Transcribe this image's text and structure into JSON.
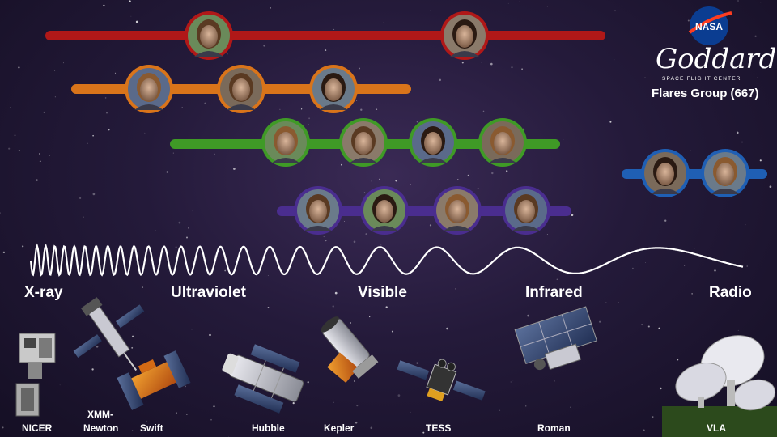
{
  "group": {
    "title": "Flares Group (667)"
  },
  "logo": {
    "agency": "NASA",
    "center": "Goddard",
    "center_sub": "SPACE FLIGHT CENTER"
  },
  "colors": {
    "red": "#b01818",
    "orange": "#d9741a",
    "green": "#3f9a26",
    "purple": "#4a2d8f",
    "blue": "#1f5fb4"
  },
  "bands": {
    "xray": "X-ray",
    "ultraviolet": "Ultraviolet",
    "visible": "Visible",
    "infrared": "Infrared",
    "radio": "Radio"
  },
  "telescopes": {
    "nicer": "NICER",
    "xmm": "XMM-Newton",
    "xmm_line1": "XMM-",
    "xmm_line2": "Newton",
    "swift": "Swift",
    "hubble": "Hubble",
    "kepler": "Kepler",
    "tess": "TESS",
    "roman": "Roman",
    "vla": "VLA"
  }
}
